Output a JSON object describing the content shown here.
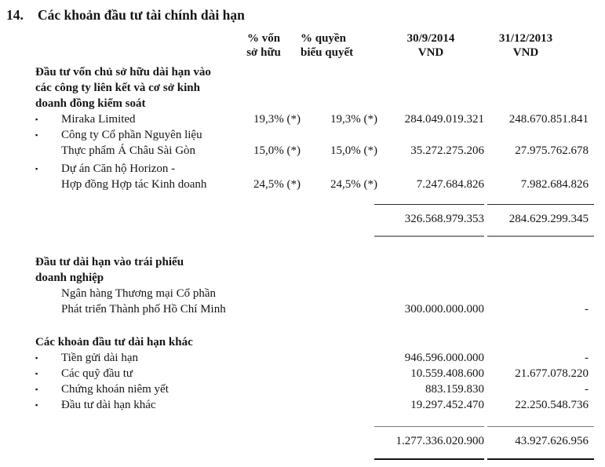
{
  "title": {
    "number": "14.",
    "text": "Các khoản đầu tư tài chính dài hạn"
  },
  "icons": {
    "bullet": "▪"
  },
  "columns": {
    "pct_own": {
      "line1": "% vốn",
      "line2": "sở hữu"
    },
    "pct_vote": {
      "line1": "% quyền",
      "line2": "biểu quyết"
    },
    "y2014": {
      "line1": "30/9/2014",
      "line2": "VND"
    },
    "y2013": {
      "line1": "31/12/2013",
      "line2": "VND"
    }
  },
  "sections": [
    {
      "heading_lines": [
        "Đầu tư vốn chủ sở hữu dài hạn vào",
        "các công ty liên kết và cơ sở kinh",
        "doanh đồng kiểm soát"
      ],
      "rows": [
        {
          "label_lines": [
            "Miraka Limited"
          ],
          "pct_own": "19,3% (*)",
          "pct_vote": "19,3% (*)",
          "v2014": "284.049.019.321",
          "v2013": "248.670.851.841"
        },
        {
          "label_lines": [
            "Công ty Cổ phần Nguyên liệu",
            "Thực phẩm Á Châu Sài Gòn"
          ],
          "pct_own": "15,0% (*)",
          "pct_vote": "15,0% (*)",
          "v2014": "35.272.275.206",
          "v2013": "27.975.762.678"
        },
        {
          "label_lines": [
            "Dự án Căn hộ Horizon -",
            "Hợp đồng Hợp tác Kinh doanh"
          ],
          "pct_own": "24,5% (*)",
          "pct_vote": "24,5% (*)",
          "v2014": "7.247.684.826",
          "v2013": "7.982.684.826"
        }
      ],
      "subtotal": {
        "v2014": "326.568.979.353",
        "v2013": "284.629.299.345"
      }
    },
    {
      "heading_lines": [
        "Đầu tư dài hạn vào trái phiếu",
        "doanh nghiệp"
      ],
      "rows": [
        {
          "label_lines": [
            "Ngân hàng Thương mại Cổ phần",
            "Phát triển Thành phố Hồ Chí Minh"
          ],
          "v2014": "300.000.000.000",
          "v2013": "-"
        }
      ]
    },
    {
      "heading_lines": [
        "Các khoản đầu tư dài hạn khác"
      ],
      "rows": [
        {
          "label_lines": [
            "Tiền gửi dài hạn"
          ],
          "v2014": "946.596.000.000",
          "v2013": "-"
        },
        {
          "label_lines": [
            "Các quỹ đầu tư"
          ],
          "v2014": "10.559.408.600",
          "v2013": "21.677.078.220"
        },
        {
          "label_lines": [
            "Chứng khoán niêm yết"
          ],
          "v2014": "883.159.830",
          "v2013": "-"
        },
        {
          "label_lines": [
            "Đầu tư dài hạn khác"
          ],
          "v2014": "19.297.452.470",
          "v2013": "22.250.548.736"
        }
      ],
      "total": {
        "v2014": "1.277.336.020.900",
        "v2013": "43.927.626.956"
      }
    }
  ]
}
